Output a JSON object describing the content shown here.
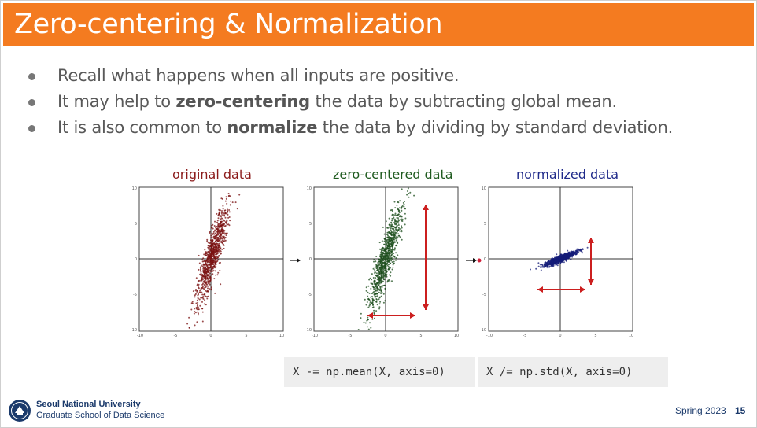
{
  "slide": {
    "title": "Zero-centering & Normalization",
    "bullets": [
      {
        "before": "Recall what happens when all inputs are positive.",
        "bold": "",
        "after": ""
      },
      {
        "before": "It may help to ",
        "bold": "zero-centering",
        "after": " the data by subtracting global mean."
      },
      {
        "before": "It is also common to ",
        "bold": "normalize",
        "after": " the data by dividing by standard deviation."
      }
    ]
  },
  "figure": {
    "plots": [
      {
        "title": "original data",
        "color": "#7a1010"
      },
      {
        "title": "zero-centered data",
        "color": "#1c4d1c"
      },
      {
        "title": "normalized data",
        "color": "#141c78"
      }
    ],
    "ticks": [
      "10",
      "5",
      "0",
      "-5",
      "-10"
    ],
    "arrow_color": "#cc1f1f"
  },
  "code": {
    "mean_line": "X -= np.mean(X, axis=0)",
    "std_line": "X /= np.std(X, axis=0)"
  },
  "footer": {
    "university": "Seoul National University",
    "school": "Graduate School of Data Science",
    "term": "Spring 2023",
    "page_number": "15"
  }
}
